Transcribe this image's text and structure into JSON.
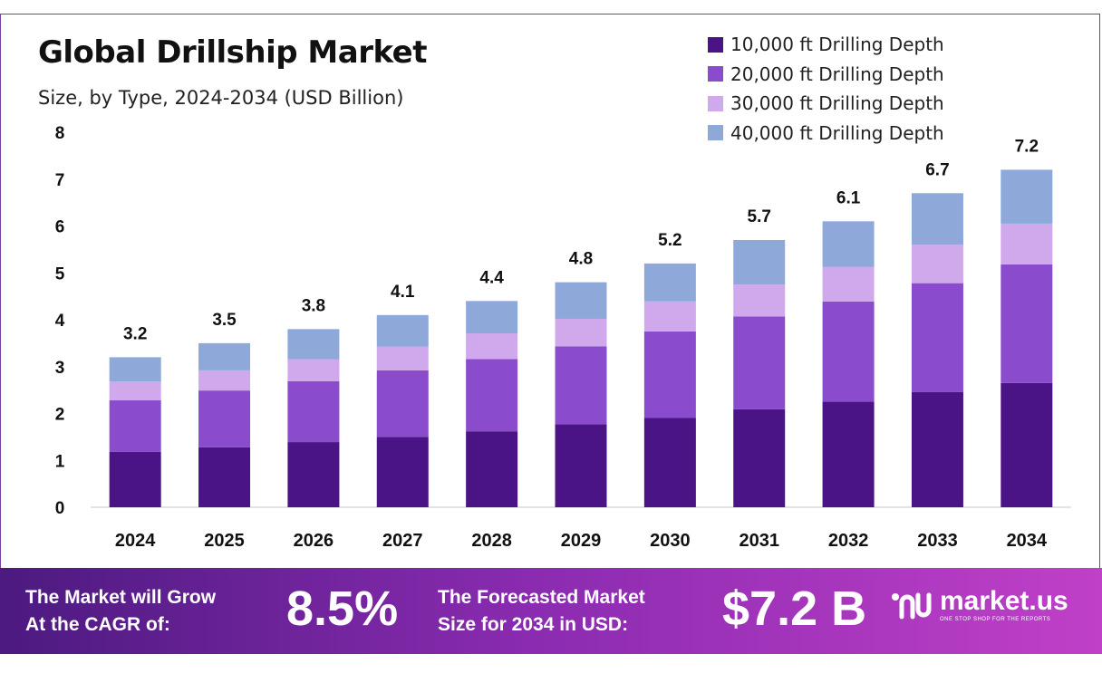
{
  "chart_data": {
    "type": "bar",
    "stacked": true,
    "title": "Global Drillship Market",
    "subtitle": "Size, by Type, 2024-2034 (USD Billion)",
    "categories": [
      "2024",
      "2025",
      "2026",
      "2027",
      "2028",
      "2029",
      "2030",
      "2031",
      "2032",
      "2033",
      "2034"
    ],
    "totals": [
      "3.2",
      "3.5",
      "3.8",
      "4.1",
      "4.4",
      "4.8",
      "5.2",
      "5.7",
      "6.1",
      "6.7",
      "7.2"
    ],
    "series": [
      {
        "name": "10,000 ft Drilling Depth",
        "color": "#4a1486",
        "values": [
          1.18,
          1.28,
          1.39,
          1.5,
          1.62,
          1.77,
          1.91,
          2.09,
          2.25,
          2.46,
          2.65
        ]
      },
      {
        "name": "20,000 ft Drilling Depth",
        "color": "#8a4bcc",
        "values": [
          1.1,
          1.21,
          1.3,
          1.42,
          1.54,
          1.66,
          1.84,
          1.98,
          2.14,
          2.32,
          2.53
        ]
      },
      {
        "name": "30,000 ft Drilling Depth",
        "color": "#d0a8ec",
        "values": [
          0.4,
          0.43,
          0.47,
          0.51,
          0.55,
          0.59,
          0.64,
          0.68,
          0.74,
          0.82,
          0.87
        ]
      },
      {
        "name": "40,000 ft Drilling Depth",
        "color": "#8fa8da",
        "values": [
          0.52,
          0.58,
          0.64,
          0.67,
          0.69,
          0.78,
          0.81,
          0.95,
          0.97,
          1.1,
          1.15
        ]
      }
    ],
    "ylim": [
      0,
      8
    ],
    "yticks": [
      "0",
      "1",
      "2",
      "3",
      "4",
      "5",
      "6",
      "7",
      "8"
    ],
    "legend_position": "top-right",
    "grid": false
  },
  "banner": {
    "cagr_label": "The Market will Grow\nAt the CAGR of:",
    "cagr_value": "8.5%",
    "forecast_label": "The Forecasted Market\nSize for 2034 in USD:",
    "forecast_value": "$7.2 B",
    "brand_name": "market.us",
    "brand_tagline": "ONE STOP SHOP FOR THE REPORTS"
  },
  "colors": {
    "banner_start": "#4c1a80",
    "banner_end": "#c040c8",
    "border": "#7a3e9d"
  }
}
